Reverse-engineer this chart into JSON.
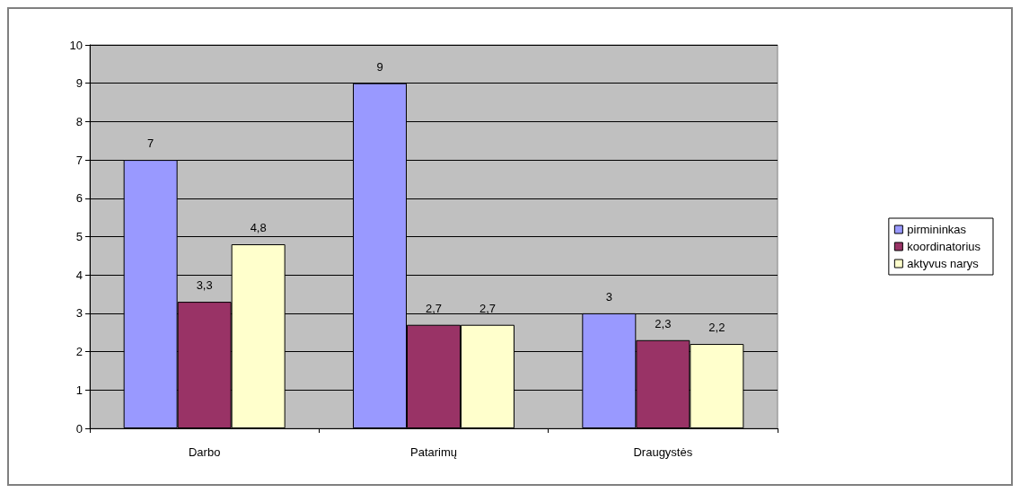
{
  "chart_data": {
    "type": "bar",
    "categories": [
      "Darbo",
      "Patarimų",
      "Draugystės"
    ],
    "series": [
      {
        "name": "pirmininkas",
        "color": "#9999ff",
        "values": [
          7,
          9,
          3
        ],
        "value_labels": [
          "7",
          "9",
          "3"
        ]
      },
      {
        "name": "koordinatorius",
        "color": "#993366",
        "values": [
          3.3,
          2.7,
          2.3
        ],
        "value_labels": [
          "3,3",
          "2,7",
          "2,3"
        ]
      },
      {
        "name": "aktyvus narys",
        "color": "#ffffcc",
        "values": [
          4.8,
          2.7,
          2.2
        ],
        "value_labels": [
          "4,8",
          "2,7",
          "2,2"
        ]
      }
    ],
    "ylim": [
      0,
      10
    ],
    "yticks": [
      0,
      1,
      2,
      3,
      4,
      5,
      6,
      7,
      8,
      9,
      10
    ],
    "grid": "y",
    "legend": "right"
  }
}
